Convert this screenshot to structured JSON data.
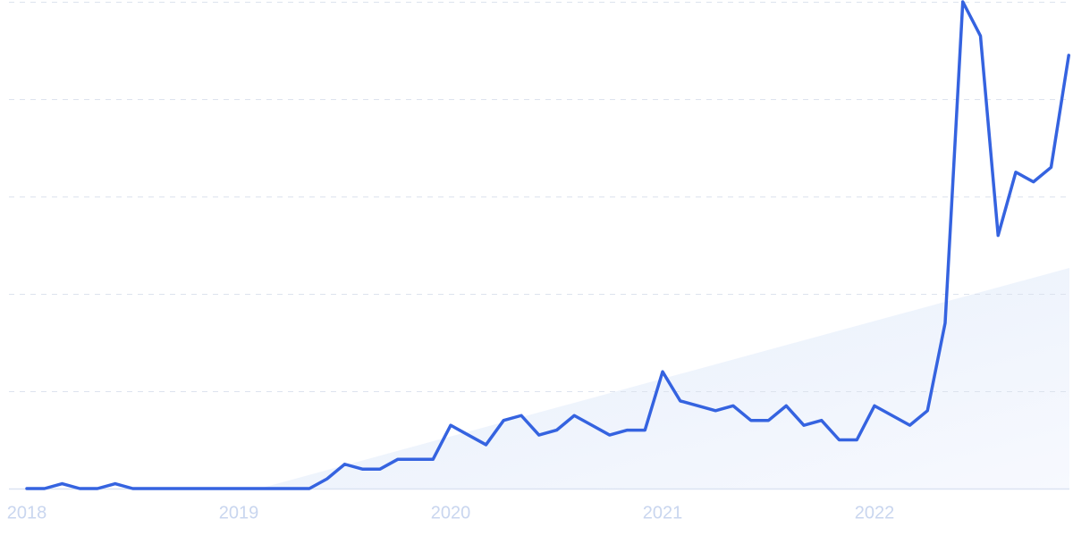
{
  "chart_data": {
    "type": "line",
    "categories": [
      "2018",
      null,
      null,
      null,
      null,
      null,
      null,
      null,
      null,
      null,
      null,
      null,
      "2019",
      null,
      null,
      null,
      null,
      null,
      null,
      null,
      null,
      null,
      null,
      null,
      "2020",
      null,
      null,
      null,
      null,
      null,
      null,
      null,
      null,
      null,
      null,
      null,
      "2021",
      null,
      null,
      null,
      null,
      null,
      null,
      null,
      null,
      null,
      null,
      null,
      "2022",
      null,
      null,
      null,
      null,
      null,
      null,
      null,
      null,
      null,
      null,
      null
    ],
    "values": [
      0,
      0,
      1,
      0,
      0,
      1,
      0,
      0,
      0,
      0,
      0,
      0,
      0,
      0,
      0,
      0,
      0,
      2,
      5,
      4,
      4,
      6,
      6,
      6,
      13,
      11,
      9,
      14,
      15,
      11,
      12,
      15,
      13,
      11,
      12,
      12,
      24,
      18,
      17,
      16,
      17,
      14,
      14,
      17,
      13,
      14,
      10,
      10,
      17,
      15,
      13,
      16,
      34,
      100,
      93,
      52,
      65,
      63,
      66,
      89
    ],
    "color": "#3563e0",
    "ylim": [
      0,
      100
    ],
    "yticks": [
      0,
      20,
      40,
      60,
      80,
      100
    ],
    "grid": true
  }
}
